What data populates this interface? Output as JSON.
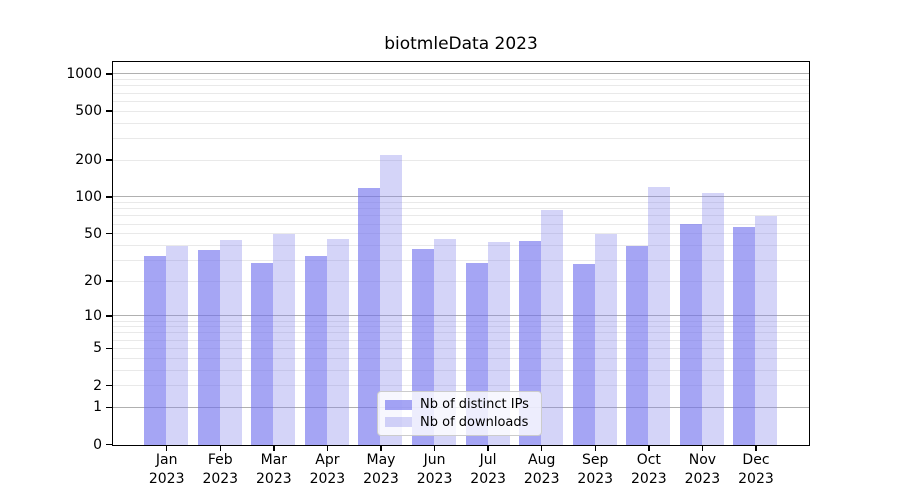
{
  "chart_data": {
    "type": "bar",
    "title": "biotmleData 2023",
    "categories": [
      "Jan 2023",
      "Feb 2023",
      "Mar 2023",
      "Apr 2023",
      "May 2023",
      "Jun 2023",
      "Jul 2023",
      "Aug 2023",
      "Sep 2023",
      "Oct 2023",
      "Nov 2023",
      "Dec 2023"
    ],
    "series": [
      {
        "name": "Nb of distinct IPs",
        "values": [
          33,
          37,
          29,
          33,
          120,
          38,
          29,
          44,
          28,
          40,
          61,
          57
        ]
      },
      {
        "name": "Nb of downloads",
        "values": [
          40,
          45,
          50,
          46,
          220,
          46,
          43,
          79,
          50,
          121,
          108,
          70
        ]
      }
    ],
    "xlabel": "",
    "ylabel": "",
    "yscale": "log1p",
    "ylim": [
      0,
      1240
    ],
    "yticks": [
      0,
      1,
      2,
      5,
      10,
      20,
      50,
      100,
      200,
      500,
      1000
    ],
    "grid_major_values": [
      1,
      10,
      100,
      1000
    ],
    "grid_minor_values": [
      2,
      3,
      4,
      5,
      6,
      7,
      8,
      9,
      20,
      30,
      40,
      50,
      60,
      70,
      80,
      90,
      200,
      300,
      400,
      500,
      600,
      700,
      800,
      900
    ],
    "grid": "horizontal",
    "legend_position": "lower center"
  },
  "style": {
    "ips_bar_color": "rgba(110,110,238,0.62)",
    "downloads_bar_color": "rgba(130,130,235,0.34)",
    "grid_major_color": "#b0b0b0",
    "grid_minor_color": "#e9e9e9",
    "axis_color": "#000000",
    "text_color": "#000000",
    "legend_bg": "rgba(255,255,255,0.8)",
    "legend_border": "#cccccc"
  }
}
